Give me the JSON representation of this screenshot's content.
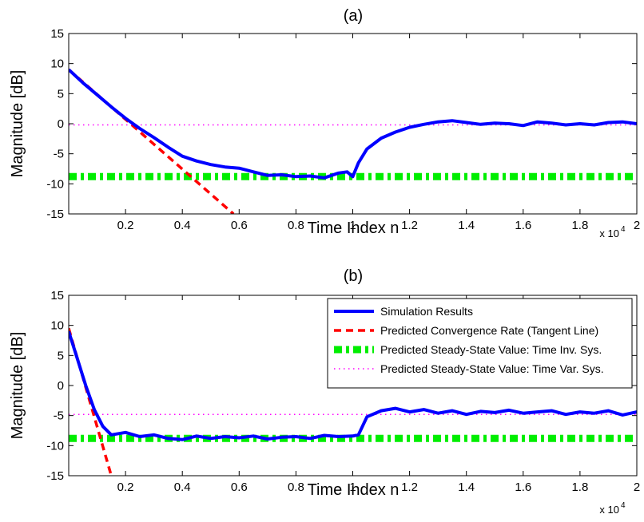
{
  "chart_data": [
    {
      "type": "line",
      "title": "(a)",
      "xlabel": "Time Index n",
      "ylabel": "Magnitude [dB]",
      "x_multiplier": "x 10",
      "x_multiplier_exponent": "4",
      "xlim": [
        0,
        2
      ],
      "ylim": [
        -15,
        15
      ],
      "x_ticks": [
        "0.2",
        "0.4",
        "0.6",
        "0.8",
        "1",
        "1.2",
        "1.4",
        "1.6",
        "1.8",
        "2"
      ],
      "y_ticks": [
        "15",
        "10",
        "5",
        "0",
        "-5",
        "-10",
        "-15"
      ],
      "x_units": "x 10^4",
      "legend": null,
      "series": [
        {
          "style": "solid-thick",
          "color": "#0000ff",
          "x": [
            0,
            0.05,
            0.1,
            0.15,
            0.2,
            0.25,
            0.3,
            0.35,
            0.4,
            0.45,
            0.5,
            0.55,
            0.6,
            0.65,
            0.7,
            0.75,
            0.8,
            0.85,
            0.9,
            0.95,
            0.98,
            1.0,
            1.02,
            1.05,
            1.1,
            1.15,
            1.2,
            1.25,
            1.3,
            1.35,
            1.4,
            1.45,
            1.5,
            1.55,
            1.6,
            1.65,
            1.7,
            1.75,
            1.8,
            1.85,
            1.9,
            1.95,
            2.0
          ],
          "y": [
            9,
            6.8,
            4.8,
            2.8,
            0.9,
            -0.8,
            -2.3,
            -3.9,
            -5.4,
            -6.2,
            -6.8,
            -7.2,
            -7.4,
            -8.0,
            -8.6,
            -8.5,
            -8.8,
            -8.7,
            -9.0,
            -8.2,
            -8.0,
            -8.8,
            -6.5,
            -4.2,
            -2.4,
            -1.4,
            -0.6,
            -0.1,
            0.3,
            0.5,
            0.2,
            -0.1,
            0.1,
            0.0,
            -0.3,
            0.3,
            0.1,
            -0.2,
            0.0,
            -0.2,
            0.2,
            0.3,
            0.0
          ]
        },
        {
          "style": "dashed",
          "color": "#ff0000",
          "x": [
            0,
            0.58
          ],
          "y": [
            9,
            -15
          ]
        },
        {
          "style": "dashdot-thick",
          "color": "#00ee00",
          "x": [
            0,
            2
          ],
          "y": [
            -8.8,
            -8.8
          ]
        },
        {
          "style": "dotted",
          "color": "#ff00ff",
          "x": [
            0,
            2
          ],
          "y": [
            -0.2,
            -0.2
          ]
        }
      ]
    },
    {
      "type": "line",
      "title": "(b)",
      "xlabel": "Time Index n",
      "ylabel": "Magnitude [dB]",
      "x_multiplier": "x 10",
      "x_multiplier_exponent": "4",
      "xlim": [
        0,
        2
      ],
      "ylim": [
        -15,
        15
      ],
      "x_ticks": [
        "0.2",
        "0.4",
        "0.6",
        "0.8",
        "1",
        "1.2",
        "1.4",
        "1.6",
        "1.8",
        "2"
      ],
      "y_ticks": [
        "15",
        "10",
        "5",
        "0",
        "-5",
        "-10",
        "-15"
      ],
      "x_units": "x 10^4",
      "legend": "top-right",
      "series": [
        {
          "name": "Simulation Results",
          "style": "solid-thick",
          "color": "#0000ff",
          "x": [
            0,
            0.03,
            0.06,
            0.09,
            0.12,
            0.15,
            0.2,
            0.25,
            0.3,
            0.35,
            0.4,
            0.45,
            0.5,
            0.55,
            0.6,
            0.65,
            0.7,
            0.75,
            0.8,
            0.85,
            0.9,
            0.95,
            1.0,
            1.02,
            1.05,
            1.1,
            1.15,
            1.2,
            1.25,
            1.3,
            1.35,
            1.4,
            1.45,
            1.5,
            1.55,
            1.6,
            1.65,
            1.7,
            1.75,
            1.8,
            1.85,
            1.9,
            1.95,
            2.0
          ],
          "y": [
            9,
            4.5,
            0,
            -4.0,
            -6.8,
            -8.2,
            -7.8,
            -8.5,
            -8.2,
            -8.8,
            -9.0,
            -8.4,
            -8.8,
            -8.5,
            -8.7,
            -8.4,
            -8.9,
            -8.6,
            -8.5,
            -8.8,
            -8.3,
            -8.5,
            -8.4,
            -8.2,
            -5.2,
            -4.2,
            -3.8,
            -4.4,
            -4.0,
            -4.6,
            -4.2,
            -4.8,
            -4.3,
            -4.5,
            -4.1,
            -4.6,
            -4.4,
            -4.2,
            -4.8,
            -4.4,
            -4.6,
            -4.2,
            -4.9,
            -4.4
          ]
        },
        {
          "name": "Predicted Convergence Rate (Tangent Line)",
          "style": "dashed",
          "color": "#ff0000",
          "x": [
            0,
            0.15
          ],
          "y": [
            9.5,
            -15
          ]
        },
        {
          "name": "Predicted Steady-State Value: Time Inv. Sys.",
          "style": "dashdot-thick",
          "color": "#00ee00",
          "x": [
            0,
            2
          ],
          "y": [
            -8.8,
            -8.8
          ]
        },
        {
          "name": "Predicted Steady-State Value: Time Var. Sys.",
          "style": "dotted",
          "color": "#ff00ff",
          "x": [
            0,
            2
          ],
          "y": [
            -4.8,
            -4.8
          ]
        }
      ]
    }
  ]
}
